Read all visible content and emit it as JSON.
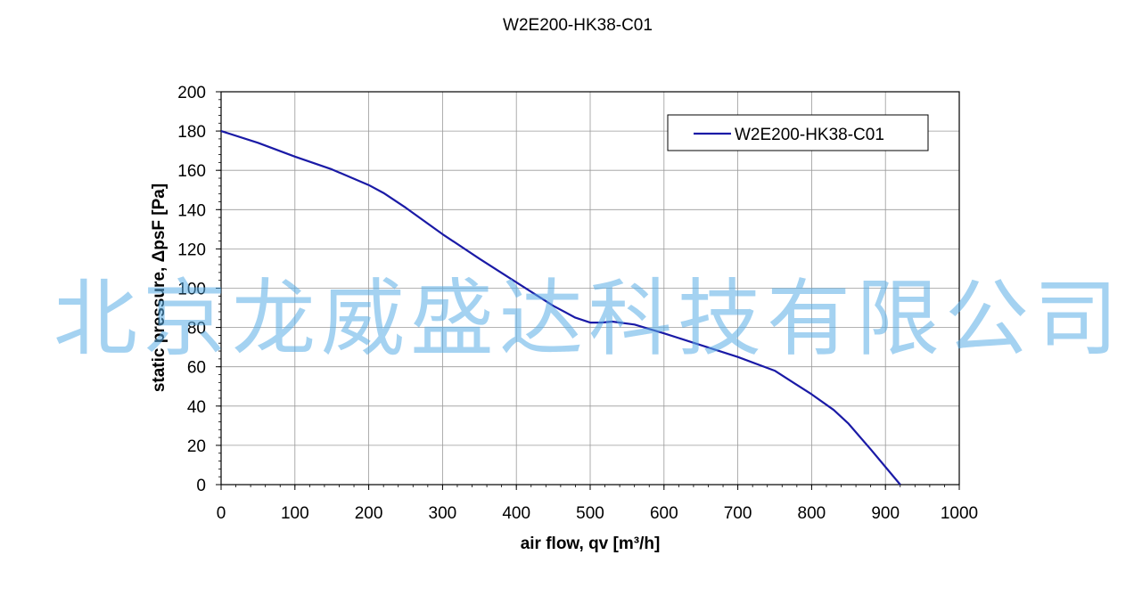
{
  "chart_data": {
    "type": "line",
    "title": "W2E200-HK38-C01",
    "xlabel": "air flow, qv [m³/h]",
    "ylabel": "static pressure, ΔpsF [Pa]",
    "xlim": [
      0,
      1000
    ],
    "ylim": [
      0,
      200
    ],
    "x_ticks": [
      0,
      100,
      200,
      300,
      400,
      500,
      600,
      700,
      800,
      900,
      1000
    ],
    "y_ticks": [
      0,
      20,
      40,
      60,
      80,
      100,
      120,
      140,
      160,
      180,
      200
    ],
    "grid": true,
    "legend_position": "top-right",
    "series": [
      {
        "name": "W2E200-HK38-C01",
        "color": "#1a1aa6",
        "x": [
          0,
          50,
          100,
          150,
          200,
          220,
          250,
          300,
          350,
          400,
          450,
          480,
          500,
          515,
          530,
          560,
          600,
          650,
          700,
          750,
          800,
          830,
          850,
          880,
          920
        ],
        "y": [
          180,
          174,
          167,
          160.5,
          152.5,
          148.5,
          141,
          127.5,
          115,
          103,
          91,
          85,
          82.5,
          82.5,
          83,
          81.5,
          77,
          71,
          65,
          58,
          46,
          38,
          31,
          18,
          0
        ]
      }
    ]
  },
  "watermark": "北京龙威盛达科技有限公司"
}
